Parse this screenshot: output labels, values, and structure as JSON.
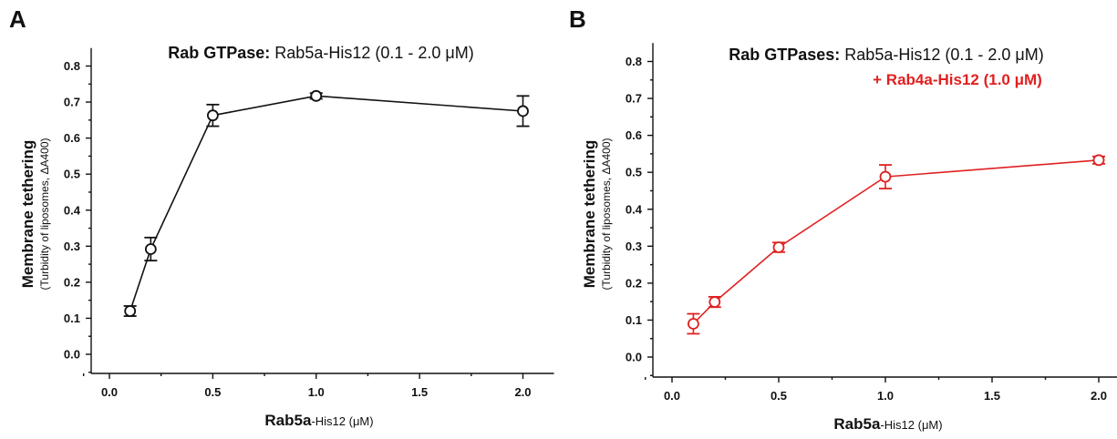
{
  "chart_data": [
    {
      "panel": "A",
      "type": "line",
      "title_bold": "Rab GTPase:",
      "title_rest": "Rab5a-His12 (0.1 - 2.0 μM)",
      "subtitle": "",
      "ylabel_main": "Membrane tethering",
      "ylabel_sub": "(Turbidity of liposomes, ΔA400)",
      "xlabel_main": "Rab5a",
      "xlabel_sub": "-His12 (μM)",
      "xlim": [
        -0.1,
        2.15
      ],
      "ylim": [
        -0.05,
        0.85
      ],
      "xticks": [
        0.0,
        0.5,
        1.0,
        1.5,
        2.0
      ],
      "xtick_labels": [
        "0.0",
        "0.5",
        "1.0",
        "1.5",
        "2.0"
      ],
      "yticks": [
        0.0,
        0.1,
        0.2,
        0.3,
        0.4,
        0.5,
        0.6,
        0.7,
        0.8
      ],
      "ytick_labels": [
        "0.0",
        "0.1",
        "0.2",
        "0.3",
        "0.4",
        "0.5",
        "0.6",
        "0.7",
        "0.8"
      ],
      "grid": false,
      "series": [
        {
          "color": "#111111",
          "x": [
            0.1,
            0.2,
            0.5,
            1.0,
            2.0
          ],
          "y": [
            0.12,
            0.292,
            0.663,
            0.717,
            0.675
          ],
          "err": [
            0.014,
            0.032,
            0.03,
            0.008,
            0.042
          ]
        }
      ]
    },
    {
      "panel": "B",
      "type": "line",
      "title_bold": "Rab GTPases:",
      "title_rest": "Rab5a-His12 (0.1 - 2.0 μM)",
      "subtitle": "+ Rab4a-His12 (1.0 μM)",
      "subtitle_color": "#e02020",
      "ylabel_main": "Membrane tethering",
      "ylabel_sub": "(Turbidity of liposomes, ΔA400)",
      "xlabel_main": "Rab5a",
      "xlabel_sub": "-His12 (μM)",
      "xlim": [
        -0.1,
        2.15
      ],
      "ylim": [
        -0.05,
        0.85
      ],
      "xticks": [
        0.0,
        0.5,
        1.0,
        1.5,
        2.0
      ],
      "xtick_labels": [
        "0.0",
        "0.5",
        "1.0",
        "1.5",
        "2.0"
      ],
      "yticks": [
        0.0,
        0.1,
        0.2,
        0.3,
        0.4,
        0.5,
        0.6,
        0.7,
        0.8
      ],
      "ytick_labels": [
        "0.0",
        "0.1",
        "0.2",
        "0.3",
        "0.4",
        "0.5",
        "0.6",
        "0.7",
        "0.8"
      ],
      "grid": false,
      "series": [
        {
          "color": "#e02020",
          "x": [
            0.1,
            0.2,
            0.5,
            1.0,
            2.0
          ],
          "y": [
            0.09,
            0.149,
            0.297,
            0.488,
            0.533
          ],
          "err": [
            0.027,
            0.014,
            0.013,
            0.032,
            0.01
          ]
        }
      ]
    }
  ]
}
